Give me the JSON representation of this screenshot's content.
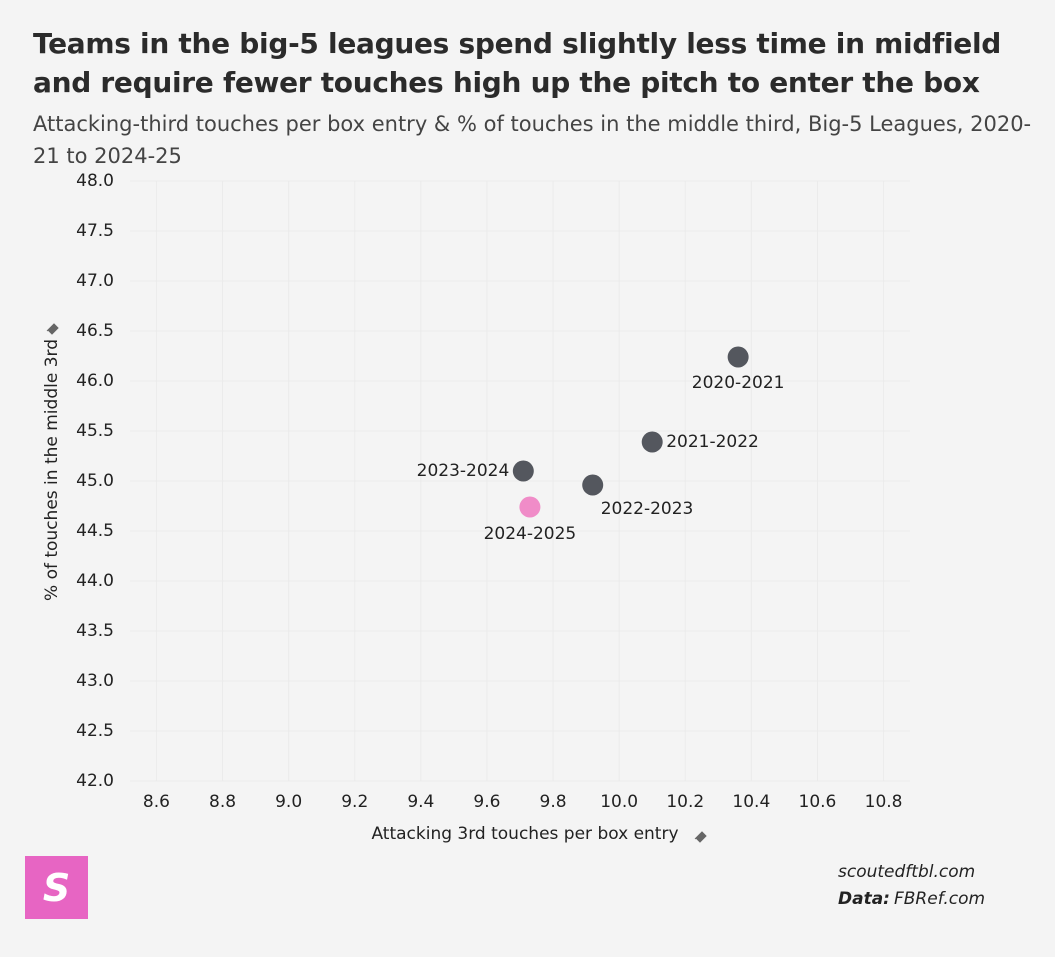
{
  "chart_data": {
    "type": "scatter",
    "title": "Teams in the big-5 leagues spend slightly less time in midfield and require fewer touches high up the pitch to enter the box",
    "subtitle": "Attacking-third touches per box entry & % of touches in the middle third, Big-5 Leagues, 2020-21 to 2024-25",
    "x_label": "Attacking 3rd touches per box entry",
    "y_label": "% of touches in the middle 3rd",
    "point_labels": [
      "2020-2021",
      "2021-2022",
      "2022-2023",
      "2023-2024",
      "2024-2025"
    ],
    "x": [
      10.36,
      10.1,
      9.92,
      9.71,
      9.73
    ],
    "values": [
      46.24,
      45.39,
      44.96,
      45.1,
      44.74
    ],
    "colors": [
      "#54575e",
      "#54575e",
      "#54575e",
      "#54575e",
      "#f08cc8"
    ],
    "xlim": [
      8.52,
      10.88
    ],
    "xticks": [
      {
        "value": 8.6,
        "label": "8.6"
      },
      {
        "value": 8.8,
        "label": "8.8"
      },
      {
        "value": 9,
        "label": "9.0"
      },
      {
        "value": 9.2,
        "label": "9.2"
      },
      {
        "value": 9.4,
        "label": "9.4"
      },
      {
        "value": 9.6,
        "label": "9.6"
      },
      {
        "value": 9.8,
        "label": "9.8"
      },
      {
        "value": 10,
        "label": "10.0"
      },
      {
        "value": 10.2,
        "label": "10.2"
      },
      {
        "value": 10.4,
        "label": "10.4"
      },
      {
        "value": 10.6,
        "label": "10.6"
      },
      {
        "value": 10.8,
        "label": "10.8"
      }
    ],
    "ylim": [
      42,
      48
    ],
    "yticks": [
      {
        "value": 42,
        "label": "42.0"
      },
      {
        "value": 42.5,
        "label": "42.5"
      },
      {
        "value": 43,
        "label": "43.0"
      },
      {
        "value": 43.5,
        "label": "43.5"
      },
      {
        "value": 44,
        "label": "44.0"
      },
      {
        "value": 44.5,
        "label": "44.5"
      },
      {
        "value": 45,
        "label": "45.0"
      },
      {
        "value": 45.5,
        "label": "45.5"
      },
      {
        "value": 46,
        "label": "46.0"
      },
      {
        "value": 46.5,
        "label": "46.5"
      },
      {
        "value": 47,
        "label": "47.0"
      },
      {
        "value": 47.5,
        "label": "47.5"
      },
      {
        "value": 48,
        "label": "48.0"
      }
    ],
    "grid": true
  },
  "footer": {
    "logo": "S",
    "site": "scoutedftbl.com",
    "source_label": "Data:",
    "source": "FBRef.com"
  }
}
